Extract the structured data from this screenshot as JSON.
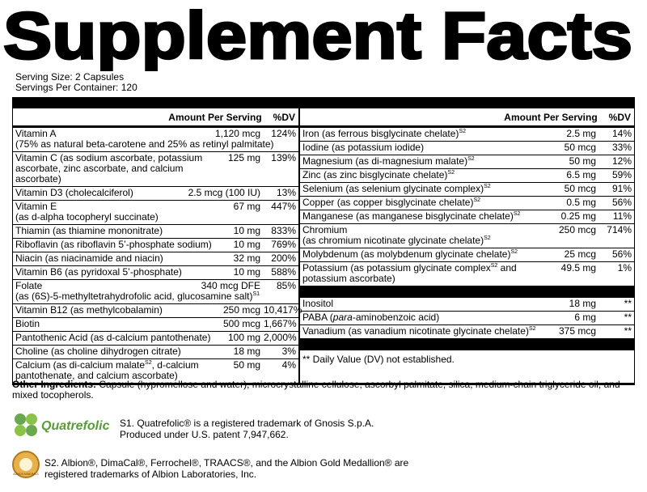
{
  "header": {
    "title": "Supplement Facts",
    "serving_size": "Serving Size: 2 Capsules",
    "servings_per_container": "Servings Per Container: 120"
  },
  "table": {
    "amount_heading": "Amount Per Serving",
    "dv_heading": "%DV",
    "left_rows": [
      {
        "name": "Vitamin A",
        "note": "(75% as natural beta-carotene and 25% as retinyl palmitate)",
        "amount": "1,120 mcg",
        "dv": "124%"
      },
      {
        "name": "Vitamin C (as sodium ascorbate, potassium ascorbate, zinc ascorbate, and calcium ascorbate)",
        "amount": "125 mg",
        "dv": "139%"
      },
      {
        "name": "Vitamin D3 (cholecalciferol)",
        "amount": "2.5 mcg (100 IU)",
        "dv": "13%"
      },
      {
        "name": "Vitamin E",
        "note": "(as d-alpha tocopheryl succinate)",
        "amount": "67 mg",
        "dv": "447%"
      },
      {
        "name": "Thiamin (as thiamine mononitrate)",
        "amount": "10 mg",
        "dv": "833%"
      },
      {
        "name": "Riboflavin (as riboflavin 5’-phosphate sodium)",
        "amount": "10 mg",
        "dv": "769%"
      },
      {
        "name": "Niacin (as niacinamide and niacin)",
        "amount": "32 mg",
        "dv": "200%"
      },
      {
        "name": "Vitamin B6 (as pyridoxal 5’-phosphate)",
        "amount": "10 mg",
        "dv": "588%"
      },
      {
        "name": "Folate",
        "note": "(as (6S)-5-methyltetrahydrofolic acid, glucosamine salt)",
        "note_sup": "S1",
        "amount": "340 mcg DFE",
        "dv": "85%"
      },
      {
        "name": "Vitamin B12 (as methylcobalamin)",
        "amount": "250 mcg",
        "dv": "10,417%"
      },
      {
        "name": "Biotin",
        "amount": "500 mcg",
        "dv": "1,667%"
      },
      {
        "name": "Pantothenic Acid (as d-calcium pantothenate)",
        "amount": "100 mg",
        "dv": "2,000%"
      },
      {
        "name": "Choline (as choline dihydrogen citrate)",
        "amount": "18 mg",
        "dv": "3%"
      },
      {
        "name": "Calcium (as di-calcium malate",
        "name_sup": "S2",
        "name_end": ", d-calcium pantothenate, and calcium ascorbate)",
        "amount": "50 mg",
        "dv": "4%"
      }
    ],
    "right_rows": [
      {
        "name": "Iron (as ferrous bisglycinate chelate)",
        "name_sup": "S2",
        "amount": "2.5 mg",
        "dv": "14%"
      },
      {
        "name": "Iodine (as potassium iodide)",
        "amount": "50 mcg",
        "dv": "33%"
      },
      {
        "name": "Magnesium (as di-magnesium malate)",
        "name_sup": "S2",
        "amount": "50 mg",
        "dv": "12%"
      },
      {
        "name": "Zinc (as zinc bisglycinate chelate)",
        "name_sup": "S2",
        "amount": "6.5 mg",
        "dv": "59%"
      },
      {
        "name": "Selenium (as selenium glycinate complex)",
        "name_sup": "S2",
        "amount": "50 mcg",
        "dv": "91%"
      },
      {
        "name": "Copper (as copper bisglycinate chelate)",
        "name_sup": "S2",
        "amount": "0.5 mg",
        "dv": "56%"
      },
      {
        "name": "Manganese (as manganese bisglycinate chelate)",
        "name_sup": "S2",
        "amount": "0.25 mg",
        "dv": "11%"
      },
      {
        "name": "Chromium",
        "note": "(as chromium nicotinate glycinate chelate)",
        "note_sup": "S2",
        "amount": "250 mcg",
        "dv": "714%"
      },
      {
        "name": "Molybdenum (as molybdenum glycinate chelate)",
        "name_sup": "S2",
        "amount": "25 mcg",
        "dv": "56%"
      },
      {
        "name": "Potassium (as potassium glycinate complex",
        "name_sup": "S2",
        "name_end": " and potassium ascorbate)",
        "amount": "49.5 mg",
        "dv": "1%"
      }
    ],
    "right_rows_no_dv": [
      {
        "name": "Inositol",
        "amount": "18 mg",
        "dv": "**"
      },
      {
        "name": "PABA (",
        "name_em": "para",
        "name_end": "-aminobenzoic acid)",
        "amount": "6 mg",
        "dv": "**"
      },
      {
        "name": "Vanadium (as vanadium nicotinate glycinate chelate)",
        "name_sup": "S2",
        "amount": "375 mcg",
        "dv": "**"
      }
    ],
    "dv_note": "** Daily Value (DV) not established."
  },
  "other_ingredients": {
    "label": "Other Ingredients:",
    "text": "Capsule (hypromellose and water), microcrystalline cellulose, ascorbyl palmitate, silica, medium-chain triglyceride oil, and mixed tocopherols."
  },
  "footnotes": [
    {
      "logo": "Quatrefolic",
      "lines": [
        "S1. Quatrefolic® is a registered trademark of Gnosis S.p.A.",
        "Produced under U.S. patent 7,947,662."
      ]
    },
    {
      "logo": "ALBION MINERALS",
      "lines": [
        "S2. Albion®, DimaCal®, Ferrochel®, TRAACS®, and the Albion Gold Medallion® are",
        "registered trademarks of Albion Laboratories, Inc."
      ]
    }
  ]
}
